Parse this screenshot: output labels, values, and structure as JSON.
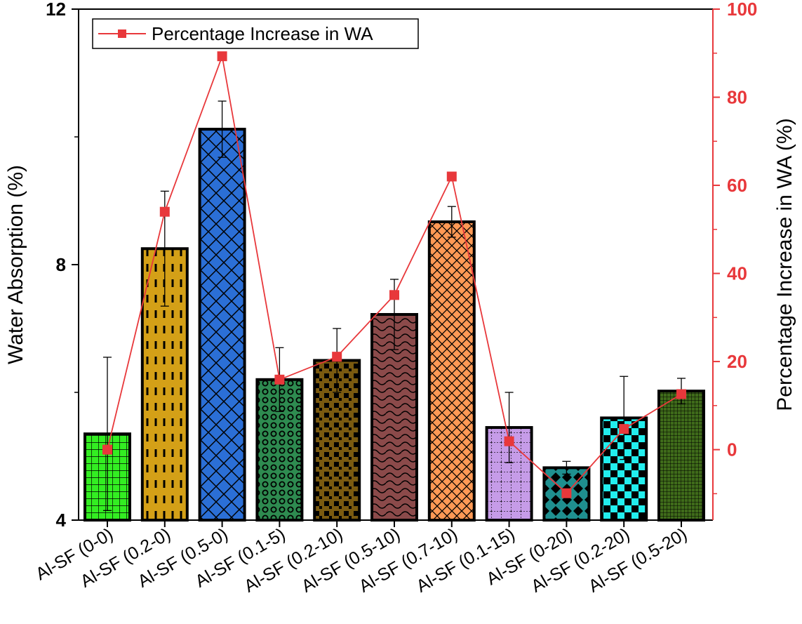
{
  "chart_data": {
    "type": "bar",
    "categories": [
      "Al-SF (0-0)",
      "Al-SF (0.2-0)",
      "Al-SF (0.5-0)",
      "Al-SF (0.1-5)",
      "Al-SF (0.2-10)",
      "Al-SF (0.5-10)",
      "Al-SF (0.7-10)",
      "Al-SF (0.1-15)",
      "Al-SF (0-20)",
      "Al-SF (0.2-20)",
      "Al-SF (0.5-20)"
    ],
    "series": [
      {
        "name": "Water Absorption",
        "axis": "left",
        "values": [
          5.35,
          8.25,
          10.12,
          6.2,
          6.5,
          7.22,
          8.67,
          5.45,
          4.82,
          5.6,
          6.02
        ],
        "error": [
          1.2,
          0.9,
          0.44,
          0.5,
          0.5,
          0.55,
          0.24,
          0.55,
          0.1,
          0.65,
          0.2
        ],
        "colors": [
          "#33ee22",
          "#d4a017",
          "#2b6fd6",
          "#2e8b50",
          "#7a5a10",
          "#8b4a4a",
          "#ff9955",
          "#c69ce8",
          "#1f8f8f",
          "#22eeee",
          "#3f6b1a"
        ]
      },
      {
        "name": "Percentage Increase in WA",
        "axis": "right",
        "type": "line",
        "color": "#e8383b",
        "values": [
          0,
          54,
          89.3,
          15.9,
          21.1,
          35.1,
          62,
          1.9,
          -9.9,
          4.7,
          12.6
        ]
      }
    ],
    "ylabel": "Water Absorption (%)",
    "ylabel_right": "Percentage Increase in WA (%)",
    "ylim": [
      4,
      12
    ],
    "yticks": [
      "4",
      "8",
      "12"
    ],
    "ylim_right": [
      -16,
      100
    ],
    "yticks_right": [
      "0",
      "20",
      "40",
      "60",
      "80",
      "100"
    ],
    "legend": {
      "label": "Percentage Increase in WA",
      "position": "top-left"
    }
  }
}
